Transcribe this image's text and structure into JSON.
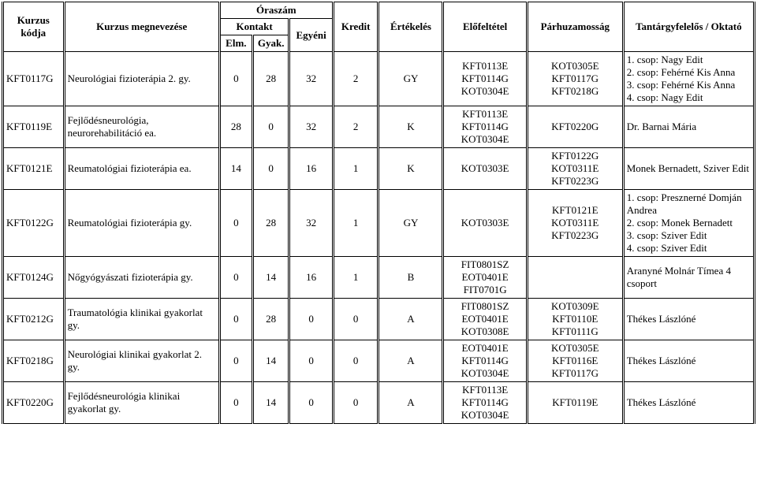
{
  "header": {
    "code": "Kurzus kódja",
    "name": "Kurzus megnevezése",
    "hours": "Óraszám",
    "contact": "Kontakt",
    "elm": "Elm.",
    "gyak": "Gyak.",
    "egyeni": "Egyéni",
    "kredit": "Kredit",
    "eval": "Értékelés",
    "pre": "Előfeltétel",
    "par": "Párhuzamosság",
    "instr": "Tantárgyfelelős / Oktató"
  },
  "rows": [
    {
      "code": "KFT0117G",
      "name": "Neurológiai fizioterápia 2. gy.",
      "elm": "0",
      "gyak": "28",
      "egyeni": "32",
      "kredit": "2",
      "eval": "GY",
      "pre": "KFT0113E\nKFT0114G\nKOT0304E",
      "par": "KOT0305E\nKFT0117G\nKFT0218G",
      "instr": "1. csop: Nagy Edit\n2. csop: Fehérné Kis Anna\n3. csop: Fehérné Kis Anna\n4. csop: Nagy Edit"
    },
    {
      "code": "KFT0119E",
      "name": "Fejlődésneurológia, neurorehabilitáció ea.",
      "elm": "28",
      "gyak": "0",
      "egyeni": "32",
      "kredit": "2",
      "eval": "K",
      "pre": "KFT0113E\nKFT0114G\nKOT0304E",
      "par": "KFT0220G",
      "instr": "Dr. Barnai Mária"
    },
    {
      "code": "KFT0121E",
      "name": "Reumatológiai fizioterápia ea.",
      "elm": "14",
      "gyak": "0",
      "egyeni": "16",
      "kredit": "1",
      "eval": "K",
      "pre": "KOT0303E",
      "par": "KFT0122G\nKOT0311E\nKFT0223G",
      "instr": "Monek Bernadett, Sziver Edit"
    },
    {
      "code": "KFT0122G",
      "name": "Reumatológiai fizioterápia gy.",
      "elm": "0",
      "gyak": "28",
      "egyeni": "32",
      "kredit": "1",
      "eval": "GY",
      "pre": "KOT0303E",
      "par": "KFT0121E\nKOT0311E\nKFT0223G",
      "instr": "1. csop: Presznerné Domján Andrea\n2. csop: Monek Bernadett\n3. csop: Sziver Edit\n4. csop: Sziver Edit"
    },
    {
      "code": "KFT0124G",
      "name": "Nőgyógyászati fizioterápia gy.",
      "elm": "0",
      "gyak": "14",
      "egyeni": "16",
      "kredit": "1",
      "eval": "B",
      "pre": "FIT0801SZ\nEOT0401E\nFIT0701G",
      "par": "",
      "instr": "Aranyné Molnár Tímea 4 csoport"
    },
    {
      "code": "KFT0212G",
      "name": "Traumatológia klinikai gyakorlat gy.",
      "elm": "0",
      "gyak": "28",
      "egyeni": "0",
      "kredit": "0",
      "eval": "A",
      "pre": "FIT0801SZ\nEOT0401E\nKOT0308E",
      "par": "KOT0309E\nKFT0110E\nKFT0111G",
      "instr": "Thékes Lászlóné"
    },
    {
      "code": "KFT0218G",
      "name": "Neurológiai klinikai gyakorlat 2. gy.",
      "elm": "0",
      "gyak": "14",
      "egyeni": "0",
      "kredit": "0",
      "eval": "A",
      "pre": "EOT0401E\nKFT0114G\nKOT0304E",
      "par": "KOT0305E\nKFT0116E\nKFT0117G",
      "instr": "Thékes Lászlóné"
    },
    {
      "code": "KFT0220G",
      "name": "Fejlődésneurológia klinikai gyakorlat gy.",
      "elm": "0",
      "gyak": "14",
      "egyeni": "0",
      "kredit": "0",
      "eval": "A",
      "pre": "KFT0113E\nKFT0114G\nKOT0304E",
      "par": "KFT0119E",
      "instr": "Thékes Lászlóné"
    }
  ]
}
